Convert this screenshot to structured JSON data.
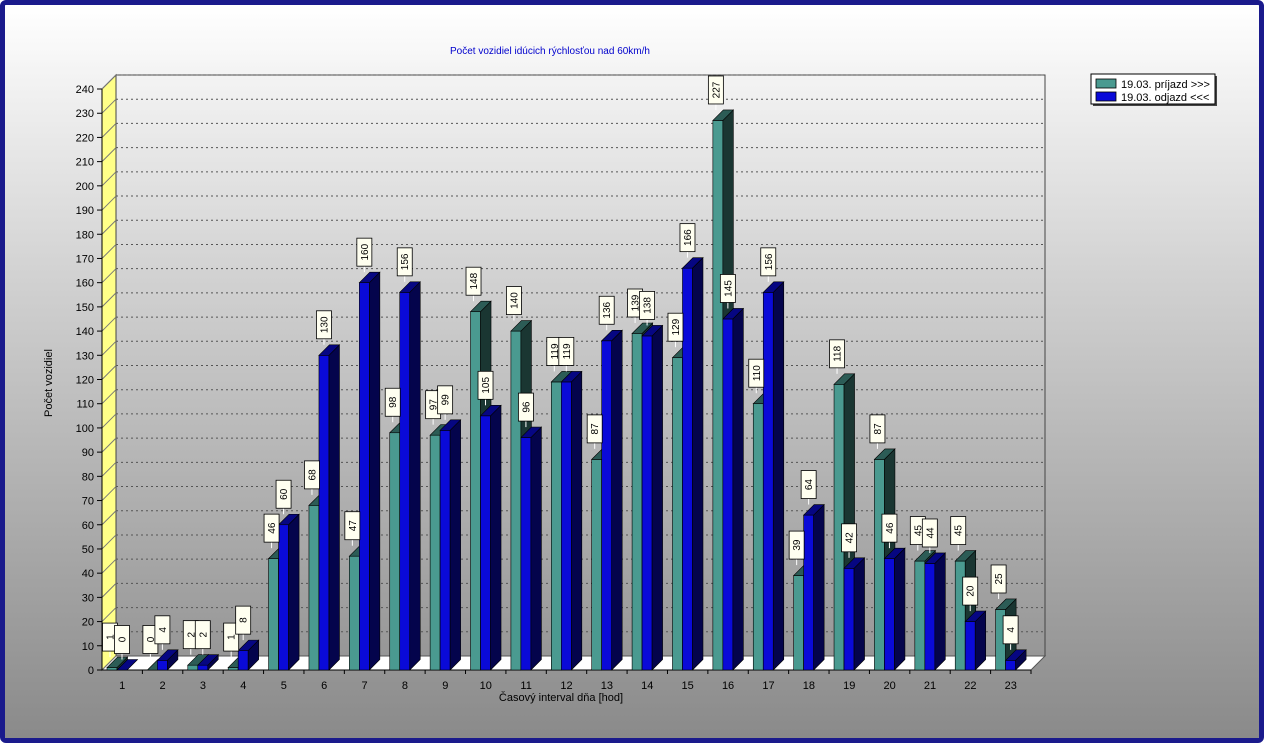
{
  "chart_data": {
    "type": "bar",
    "title": "Počet vozidiel idúcich rýchlosťou nad 60km/h",
    "xlabel": "Časový interval dňa [hod]",
    "ylabel": "Počet vozidiel",
    "ylim": [
      0,
      240
    ],
    "ytick_step": 10,
    "categories": [
      "1",
      "2",
      "3",
      "4",
      "5",
      "6",
      "7",
      "8",
      "9",
      "10",
      "11",
      "12",
      "13",
      "14",
      "15",
      "16",
      "17",
      "18",
      "19",
      "20",
      "21",
      "22",
      "23"
    ],
    "series": [
      {
        "name": "19.03.  príjazd >>>",
        "color": "#4a9a90",
        "values": [
          1,
          0,
          2,
          1,
          46,
          68,
          47,
          98,
          97,
          148,
          140,
          119,
          87,
          139,
          129,
          227,
          110,
          39,
          118,
          87,
          45,
          45,
          25
        ]
      },
      {
        "name": "19.03.  odjazd <<<",
        "color": "#0a0ad8",
        "values": [
          0,
          4,
          2,
          8,
          60,
          130,
          160,
          156,
          99,
          105,
          96,
          119,
          136,
          138,
          166,
          145,
          156,
          64,
          42,
          46,
          44,
          20,
          4
        ]
      }
    ],
    "grid": true,
    "legend_position": "top-right"
  }
}
